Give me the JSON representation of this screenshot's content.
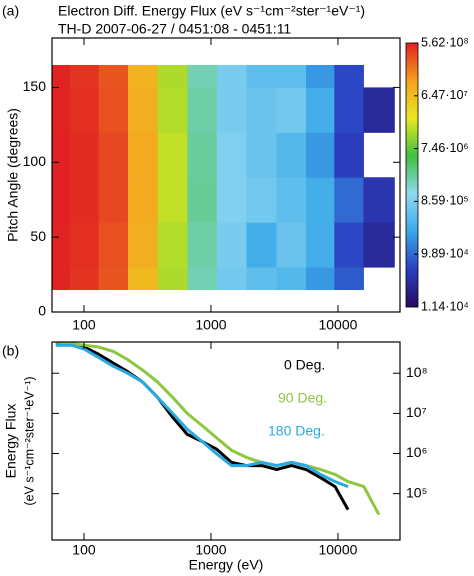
{
  "chart_data": [
    {
      "type": "contour",
      "panel_label": "(a)",
      "title": "Electron Diff. Energy Flux  (eV s⁻¹cm⁻²ster⁻¹eV⁻¹)",
      "subtitle": "TH-D  2007-06-27 / 0451:08 - 0451:11",
      "ylabel": "Pitch Angle (degrees)",
      "x": [
        60,
        100,
        170,
        290,
        500,
        850,
        1450,
        2500,
        4300,
        7300,
        12000,
        21000
      ],
      "y": [
        15,
        45,
        75,
        105,
        135,
        165
      ],
      "z": [
        [
          550000000.0,
          450000000.0,
          300000000.0,
          70000000.0,
          15000000.0,
          2000000.0,
          700000.0,
          500000.0,
          400000.0,
          200000.0,
          80000.0,
          null
        ],
        [
          550000000.0,
          480000000.0,
          320000000.0,
          90000000.0,
          16000000.0,
          2200000.0,
          800000.0,
          300000.0,
          600000.0,
          300000.0,
          60000.0,
          30000.0
        ],
        [
          560000000.0,
          500000000.0,
          350000000.0,
          100000000.0,
          18000000.0,
          2500000.0,
          900000.0,
          700000.0,
          500000.0,
          300000.0,
          100000.0,
          40000.0
        ],
        [
          560000000.0,
          500000000.0,
          350000000.0,
          100000000.0,
          18000000.0,
          2400000.0,
          900000.0,
          600000.0,
          400000.0,
          200000.0,
          50000.0,
          null
        ],
        [
          550000000.0,
          480000000.0,
          320000000.0,
          90000000.0,
          16000000.0,
          2200000.0,
          800000.0,
          600000.0,
          700000.0,
          300000.0,
          60000.0,
          30000.0
        ],
        [
          550000000.0,
          450000000.0,
          300000000.0,
          80000000.0,
          15000000.0,
          2000000.0,
          800000.0,
          500000.0,
          500000.0,
          200000.0,
          60000.0,
          null
        ]
      ],
      "xscale": "log",
      "xlim": [
        56,
        30800
      ],
      "xticks": [
        100,
        1000,
        10000
      ],
      "ylim": [
        0,
        183
      ],
      "yticks": [
        0,
        50,
        100,
        150
      ],
      "zscale": "log",
      "zlim": [
        11400,
        562000000
      ],
      "colormap": [
        "#2a0a5e",
        "#2a3fc0",
        "#3aa8e8",
        "#8fd8f0",
        "#3fc040",
        "#e8e820",
        "#f5a020",
        "#e02222"
      ],
      "colorbar_ticks": [
        {
          "value": 562000000,
          "label": "5.62·10⁸"
        },
        {
          "value": 64700000,
          "label": "6.47·10⁷"
        },
        {
          "value": 7460000,
          "label": "7.46·10⁶"
        },
        {
          "value": 859000,
          "label": "8.59·10⁵"
        },
        {
          "value": 98900,
          "label": "9.89·10⁴"
        },
        {
          "value": 11400,
          "label": "1.14·10⁴"
        }
      ]
    },
    {
      "type": "line",
      "panel_label": "(b)",
      "ylabel": "Energy Flux",
      "ylabel_units": "(eV s⁻¹cm⁻²ster⁻¹eV⁻¹)",
      "xlabel": "Energy (eV)",
      "x": [
        60,
        80,
        100,
        130,
        170,
        220,
        290,
        380,
        500,
        650,
        850,
        1100,
        1450,
        1900,
        2500,
        3300,
        4300,
        5600,
        7300,
        9500,
        12000,
        16000,
        21000
      ],
      "series": [
        {
          "name": "0 Deg.",
          "color": "#000000",
          "values": [
            550000000.0,
            550000000.0,
            450000000.0,
            300000000.0,
            180000000.0,
            110000000.0,
            60000000.0,
            25000000.0,
            8000000.0,
            3000000.0,
            2000000.0,
            1300000.0,
            600000.0,
            500000.0,
            500000.0,
            400000.0,
            500000.0,
            400000.0,
            250000.0,
            150000.0,
            40000.0,
            null,
            null
          ]
        },
        {
          "name": "90 Deg.",
          "color": "#8dc63f",
          "values": [
            600000000.0,
            550000000.0,
            500000000.0,
            450000000.0,
            350000000.0,
            220000000.0,
            120000000.0,
            60000000.0,
            25000000.0,
            10000000.0,
            5000000.0,
            2500000.0,
            1200000.0,
            800000.0,
            600000.0,
            500000.0,
            600000.0,
            500000.0,
            400000.0,
            300000.0,
            200000.0,
            150000.0,
            30000.0
          ]
        },
        {
          "name": "180 Deg.",
          "color": "#29abe2",
          "values": [
            500000000.0,
            500000000.0,
            400000000.0,
            250000000.0,
            150000000.0,
            100000000.0,
            60000000.0,
            25000000.0,
            10000000.0,
            4000000.0,
            2000000.0,
            1000000.0,
            500000.0,
            500000.0,
            600000.0,
            500000.0,
            600000.0,
            500000.0,
            300000.0,
            200000.0,
            150000.0,
            null,
            null
          ]
        }
      ],
      "xscale": "log",
      "xlim": [
        56,
        30800
      ],
      "xticks": [
        100,
        1000,
        10000
      ],
      "yscale": "log",
      "ylim": [
        7000,
        600000000
      ],
      "yticks": [
        {
          "value": 100000,
          "label": "10⁵"
        },
        {
          "value": 1000000,
          "label": "10⁶"
        },
        {
          "value": 10000000,
          "label": "10⁷"
        },
        {
          "value": 100000000,
          "label": "10⁸"
        }
      ]
    }
  ]
}
